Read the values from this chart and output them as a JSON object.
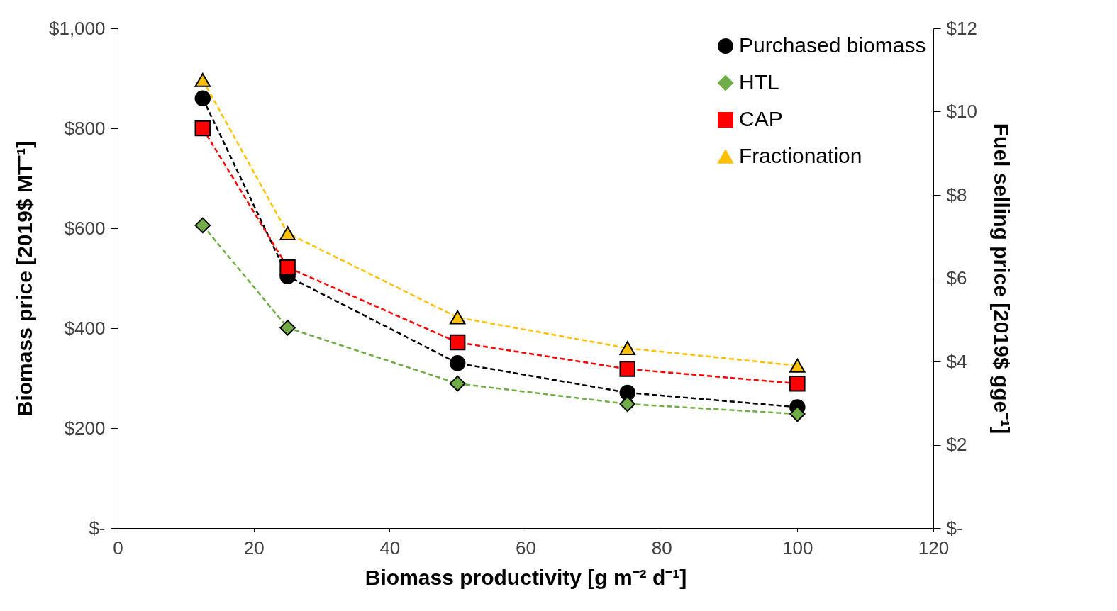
{
  "chart_data": {
    "type": "line",
    "xlabel": "Biomass productivity [g m⁻² d⁻¹]",
    "ylabel": "Biomass price [2019$ MT⁻¹]",
    "y2label": "Fuel selling price [2019$ gge⁻¹]",
    "xlim": [
      0,
      120
    ],
    "xticks": [
      0,
      20,
      40,
      60,
      80,
      100,
      120
    ],
    "ylim": [
      0,
      1000
    ],
    "yticks": [
      {
        "value": 0,
        "label": "$-"
      },
      {
        "value": 200,
        "label": "$200"
      },
      {
        "value": 400,
        "label": "$400"
      },
      {
        "value": 600,
        "label": "$600"
      },
      {
        "value": 800,
        "label": "$800"
      },
      {
        "value": 1000,
        "label": "$1,000"
      }
    ],
    "y2lim": [
      0,
      12
    ],
    "y2ticks": [
      {
        "value": 0,
        "label": "$-"
      },
      {
        "value": 2,
        "label": "$2"
      },
      {
        "value": 4,
        "label": "$4"
      },
      {
        "value": 6,
        "label": "$6"
      },
      {
        "value": 8,
        "label": "$8"
      },
      {
        "value": 10,
        "label": "$10"
      },
      {
        "value": 12,
        "label": "$12"
      }
    ],
    "x": [
      12.5,
      25,
      50,
      75,
      100
    ],
    "grid": false,
    "legend": "top right",
    "line_style": "dashed",
    "series": [
      {
        "name": "Purchased biomass",
        "color": "#000000",
        "marker": "circle",
        "values": [
          860,
          504,
          330,
          271,
          242
        ]
      },
      {
        "name": "HTL",
        "color": "#70ad47",
        "marker": "diamond",
        "axis": "y2",
        "values": [
          7.27,
          4.81,
          3.47,
          2.98,
          2.74
        ]
      },
      {
        "name": "CAP",
        "color": "#ff0000",
        "marker": "square",
        "axis": "y2",
        "values": [
          9.6,
          6.26,
          4.46,
          3.82,
          3.47
        ]
      },
      {
        "name": "Fractionation",
        "color": "#ffc000",
        "marker": "triangle",
        "axis": "y2",
        "values": [
          10.76,
          7.08,
          5.06,
          4.32,
          3.9
        ]
      }
    ]
  }
}
